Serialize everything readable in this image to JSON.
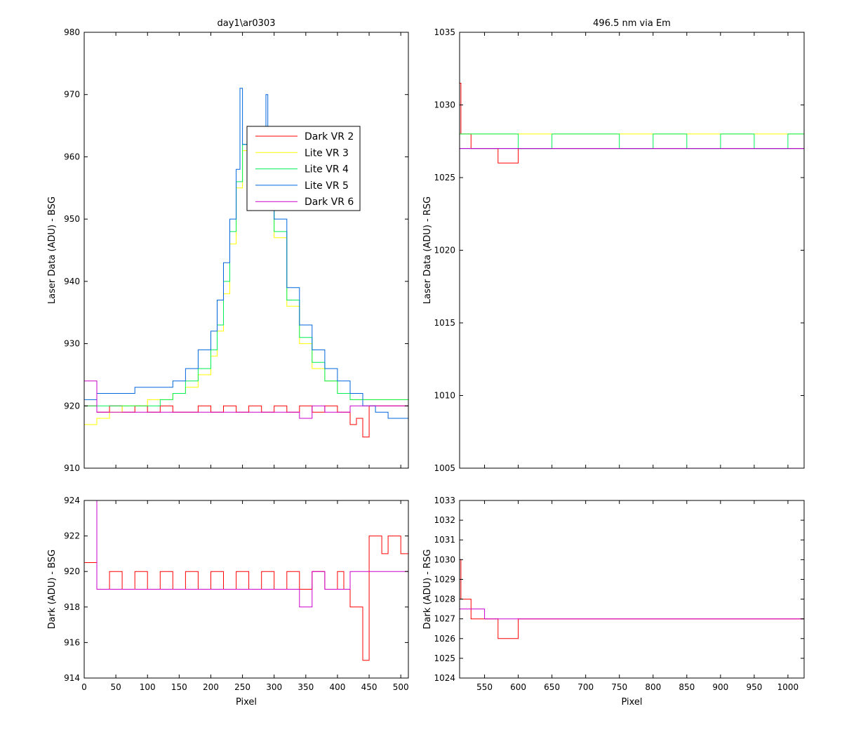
{
  "chart_data": [
    {
      "id": "p1",
      "type": "line",
      "title": "day1\\ar0303",
      "xlabel": "",
      "ylabel": "Laser Data (ADU) - BSG",
      "xlim": [
        0,
        512
      ],
      "ylim": [
        910,
        980
      ],
      "xticks": [
        0,
        50,
        100,
        150,
        200,
        250,
        300,
        350,
        400,
        450,
        500
      ],
      "yticks": [
        910,
        920,
        930,
        940,
        950,
        960,
        970,
        980
      ],
      "xtick_labels": false,
      "legend": {
        "position": "inside-top-center"
      },
      "series": [
        {
          "name": "Dark VR 2",
          "color": "#ff0000",
          "x": [
            0,
            20,
            40,
            60,
            80,
            100,
            120,
            140,
            160,
            180,
            200,
            220,
            240,
            260,
            280,
            300,
            320,
            340,
            360,
            380,
            400,
            410,
            420,
            430,
            440,
            450,
            470,
            490,
            512
          ],
          "y": [
            920,
            919,
            920,
            919,
            920,
            919,
            920,
            919,
            919,
            920,
            919,
            920,
            919,
            920,
            919,
            920,
            919,
            920,
            919,
            920,
            919,
            919,
            917,
            918,
            915,
            920,
            920,
            920,
            920
          ]
        },
        {
          "name": "Lite VR 3",
          "color": "#ffff00",
          "x": [
            0,
            20,
            40,
            60,
            80,
            100,
            120,
            140,
            160,
            180,
            200,
            210,
            220,
            230,
            240,
            250,
            260,
            280,
            290,
            300,
            320,
            340,
            360,
            380,
            400,
            420,
            440,
            460,
            480,
            512
          ],
          "y": [
            917,
            918,
            919,
            920,
            920,
            921,
            921,
            922,
            923,
            925,
            928,
            932,
            938,
            946,
            955,
            961,
            961,
            961,
            957,
            947,
            936,
            930,
            926,
            924,
            922,
            921,
            921,
            921,
            921,
            921
          ]
        },
        {
          "name": "Lite VR 4",
          "color": "#00ee55",
          "x": [
            0,
            20,
            40,
            60,
            80,
            100,
            120,
            140,
            160,
            180,
            200,
            210,
            220,
            230,
            240,
            250,
            260,
            280,
            290,
            300,
            320,
            340,
            360,
            380,
            400,
            420,
            440,
            460,
            480,
            512
          ],
          "y": [
            920,
            920,
            920,
            920,
            920,
            920,
            921,
            922,
            924,
            926,
            929,
            933,
            940,
            948,
            956,
            962,
            962,
            962,
            958,
            948,
            937,
            931,
            927,
            924,
            922,
            921,
            921,
            921,
            921,
            920
          ]
        },
        {
          "name": "Lite VR 5",
          "color": "#0066dd",
          "x": [
            0,
            20,
            40,
            60,
            80,
            100,
            120,
            140,
            160,
            180,
            200,
            210,
            220,
            230,
            240,
            246,
            250,
            260,
            280,
            287,
            290,
            300,
            320,
            340,
            360,
            380,
            400,
            420,
            440,
            460,
            480,
            512
          ],
          "y": [
            921,
            922,
            922,
            922,
            923,
            923,
            923,
            924,
            926,
            929,
            932,
            937,
            943,
            950,
            958,
            971,
            962,
            962,
            962,
            970,
            958,
            950,
            939,
            933,
            929,
            926,
            924,
            922,
            920,
            919,
            918,
            918
          ]
        },
        {
          "name": "Dark VR 6",
          "color": "#cc00cc",
          "x": [
            0,
            20,
            40,
            60,
            80,
            100,
            120,
            140,
            160,
            180,
            200,
            220,
            240,
            260,
            280,
            300,
            320,
            340,
            360,
            380,
            400,
            420,
            440,
            460,
            480,
            500,
            512
          ],
          "y": [
            924,
            919,
            919,
            919,
            919,
            919,
            919,
            919,
            919,
            919,
            919,
            919,
            919,
            919,
            919,
            919,
            919,
            918,
            920,
            919,
            919,
            920,
            920,
            920,
            920,
            920,
            920
          ]
        }
      ]
    },
    {
      "id": "p2",
      "type": "line",
      "title": "496.5 nm via Em",
      "xlabel": "",
      "ylabel": "Laser Data (ADU) - RSG",
      "xlim": [
        513,
        1024
      ],
      "ylim": [
        1005,
        1035
      ],
      "xticks": [
        550,
        600,
        650,
        700,
        750,
        800,
        850,
        900,
        950,
        1000
      ],
      "yticks": [
        1005,
        1010,
        1015,
        1020,
        1025,
        1030,
        1035
      ],
      "xtick_labels": false,
      "series": [
        {
          "name": "Dark VR 2",
          "color": "#ff0000",
          "x": [
            513,
            515,
            530,
            550,
            570,
            600,
            650,
            700,
            750,
            800,
            850,
            900,
            950,
            1000,
            1024
          ],
          "y": [
            1031.5,
            1028,
            1027,
            1027,
            1026,
            1027,
            1027,
            1027,
            1027,
            1027,
            1027,
            1027,
            1027,
            1027,
            1027
          ]
        },
        {
          "name": "Lite VR 3",
          "color": "#ffff00",
          "x": [
            513,
            550,
            600,
            650,
            700,
            750,
            800,
            850,
            900,
            950,
            1000,
            1024
          ],
          "y": [
            1028,
            1028,
            1028,
            1028,
            1028,
            1028,
            1028,
            1028,
            1028,
            1028,
            1028,
            1028
          ]
        },
        {
          "name": "Lite VR 4",
          "color": "#00ee55",
          "x": [
            513,
            550,
            600,
            650,
            700,
            750,
            800,
            850,
            900,
            950,
            1000,
            1024
          ],
          "y": [
            1028,
            1028,
            1027,
            1028,
            1028,
            1027,
            1028,
            1027,
            1028,
            1027,
            1028,
            1027
          ]
        },
        {
          "name": "Lite VR 5",
          "color": "#0066dd",
          "x": [
            513,
            550,
            600,
            650,
            700,
            750,
            800,
            850,
            900,
            950,
            1000,
            1024
          ],
          "y": [
            1027,
            1027,
            1027,
            1027,
            1027,
            1027,
            1027,
            1027,
            1027,
            1027,
            1027,
            1027
          ]
        },
        {
          "name": "Dark VR 6",
          "color": "#cc00cc",
          "x": [
            513,
            550,
            600,
            650,
            700,
            750,
            800,
            850,
            900,
            950,
            1000,
            1024
          ],
          "y": [
            1027,
            1027,
            1027,
            1027,
            1027,
            1027,
            1027,
            1027,
            1027,
            1027,
            1027,
            1027
          ]
        }
      ]
    },
    {
      "id": "p3",
      "type": "line",
      "title": "",
      "xlabel": "Pixel",
      "ylabel": "Dark (ADU) - BSG",
      "xlim": [
        0,
        512
      ],
      "ylim": [
        914,
        924
      ],
      "xticks": [
        0,
        50,
        100,
        150,
        200,
        250,
        300,
        350,
        400,
        450,
        500
      ],
      "yticks": [
        914,
        916,
        918,
        920,
        922,
        924
      ],
      "xtick_labels": true,
      "series": [
        {
          "name": "Dark VR 2",
          "color": "#ff0000",
          "x": [
            0,
            20,
            40,
            60,
            80,
            100,
            120,
            140,
            160,
            180,
            200,
            220,
            240,
            260,
            280,
            300,
            320,
            340,
            360,
            380,
            400,
            410,
            420,
            430,
            440,
            450,
            460,
            470,
            480,
            490,
            500,
            512
          ],
          "y": [
            920.5,
            919,
            920,
            919,
            920,
            919,
            920,
            919,
            920,
            919,
            920,
            919,
            920,
            919,
            920,
            919,
            920,
            919,
            920,
            919,
            920,
            919,
            918,
            918,
            915,
            922,
            922,
            921,
            922,
            922,
            921,
            922
          ]
        },
        {
          "name": "Dark VR 6",
          "color": "#cc00cc",
          "x": [
            0,
            20,
            40,
            60,
            80,
            100,
            120,
            140,
            160,
            180,
            200,
            220,
            240,
            260,
            280,
            300,
            320,
            340,
            360,
            380,
            400,
            420,
            440,
            460,
            480,
            500,
            512
          ],
          "y": [
            924,
            919,
            919,
            919,
            919,
            919,
            919,
            919,
            919,
            919,
            919,
            919,
            919,
            919,
            919,
            919,
            919,
            918,
            920,
            919,
            919,
            920,
            920,
            920,
            920,
            920,
            920
          ]
        }
      ]
    },
    {
      "id": "p4",
      "type": "line",
      "title": "",
      "xlabel": "Pixel",
      "ylabel": "Dark (ADU) - RSG",
      "xlim": [
        513,
        1024
      ],
      "ylim": [
        1024,
        1033
      ],
      "xticks": [
        550,
        600,
        650,
        700,
        750,
        800,
        850,
        900,
        950,
        1000
      ],
      "yticks": [
        1024,
        1025,
        1026,
        1027,
        1028,
        1029,
        1030,
        1031,
        1032,
        1033
      ],
      "xtick_labels": true,
      "series": [
        {
          "name": "Dark VR 2",
          "color": "#ff0000",
          "x": [
            513,
            515,
            530,
            550,
            570,
            600,
            650,
            700,
            750,
            800,
            850,
            900,
            950,
            1000,
            1024
          ],
          "y": [
            1030,
            1028,
            1027,
            1027,
            1026,
            1027,
            1027,
            1027,
            1027,
            1027,
            1027,
            1027,
            1027,
            1027,
            1027
          ]
        },
        {
          "name": "Dark VR 6",
          "color": "#cc00cc",
          "x": [
            513,
            550,
            600,
            650,
            700,
            750,
            800,
            850,
            900,
            950,
            1000,
            1024
          ],
          "y": [
            1027.5,
            1027,
            1027,
            1027,
            1027,
            1027,
            1027,
            1027,
            1027,
            1027,
            1027,
            1027
          ]
        }
      ]
    }
  ]
}
